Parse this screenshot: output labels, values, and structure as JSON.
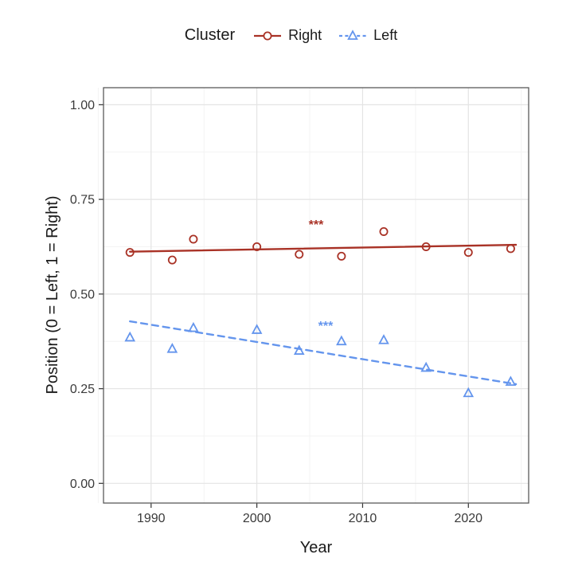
{
  "legend": {
    "title": "Cluster",
    "entries": [
      {
        "label": "Right",
        "color": "#a93226",
        "marker": "circle",
        "line_style": "solid"
      },
      {
        "label": "Left",
        "color": "#6495ed",
        "marker": "triangle",
        "line_style": "dashed"
      }
    ]
  },
  "chart_data": {
    "type": "scatter",
    "title": "",
    "xlabel": "Year",
    "ylabel": "Position (0 = Left, 1 = Right)",
    "xlim": [
      1985.5,
      2025.7
    ],
    "ylim": [
      -0.052,
      1.045
    ],
    "x_major_ticks": [
      1990,
      2000,
      2010,
      2020
    ],
    "x_tick_labels": [
      "1990",
      "2000",
      "2010",
      "2020"
    ],
    "x_minor_ticks": [
      1985,
      1995,
      2005,
      2015,
      2025
    ],
    "y_major_ticks": [
      0,
      0.25,
      0.5,
      0.75,
      1.0
    ],
    "y_tick_labels": [
      "0.00",
      "0.25",
      "0.50",
      "0.75",
      "1.00"
    ],
    "y_minor_ticks": [
      0.125,
      0.375,
      0.625,
      0.875
    ],
    "grid": true,
    "legend_position": "top",
    "series": [
      {
        "name": "Right",
        "color": "#a93226",
        "marker": "circle",
        "line_style": "solid",
        "x": [
          1988,
          1992,
          1994,
          2000,
          2004,
          2008,
          2012,
          2016,
          2020,
          2024
        ],
        "y": [
          0.61,
          0.59,
          0.645,
          0.625,
          0.605,
          0.6,
          0.665,
          0.625,
          0.61,
          0.62
        ],
        "trend": {
          "x": [
            1988,
            2024.5
          ],
          "y": [
            0.612,
            0.63
          ]
        },
        "annotation": {
          "text": "***",
          "x": 2005.6,
          "y": 0.672
        }
      },
      {
        "name": "Left",
        "color": "#6495ed",
        "marker": "triangle",
        "line_style": "dashed",
        "x": [
          1988,
          1992,
          1994,
          2000,
          2004,
          2008,
          2012,
          2016,
          2020,
          2024
        ],
        "y": [
          0.385,
          0.355,
          0.41,
          0.405,
          0.35,
          0.375,
          0.378,
          0.305,
          0.238,
          0.268
        ],
        "trend": {
          "x": [
            1988,
            2024.5
          ],
          "y": [
            0.428,
            0.262
          ]
        },
        "annotation": {
          "text": "***",
          "x": 2006.5,
          "y": 0.405
        }
      }
    ]
  }
}
